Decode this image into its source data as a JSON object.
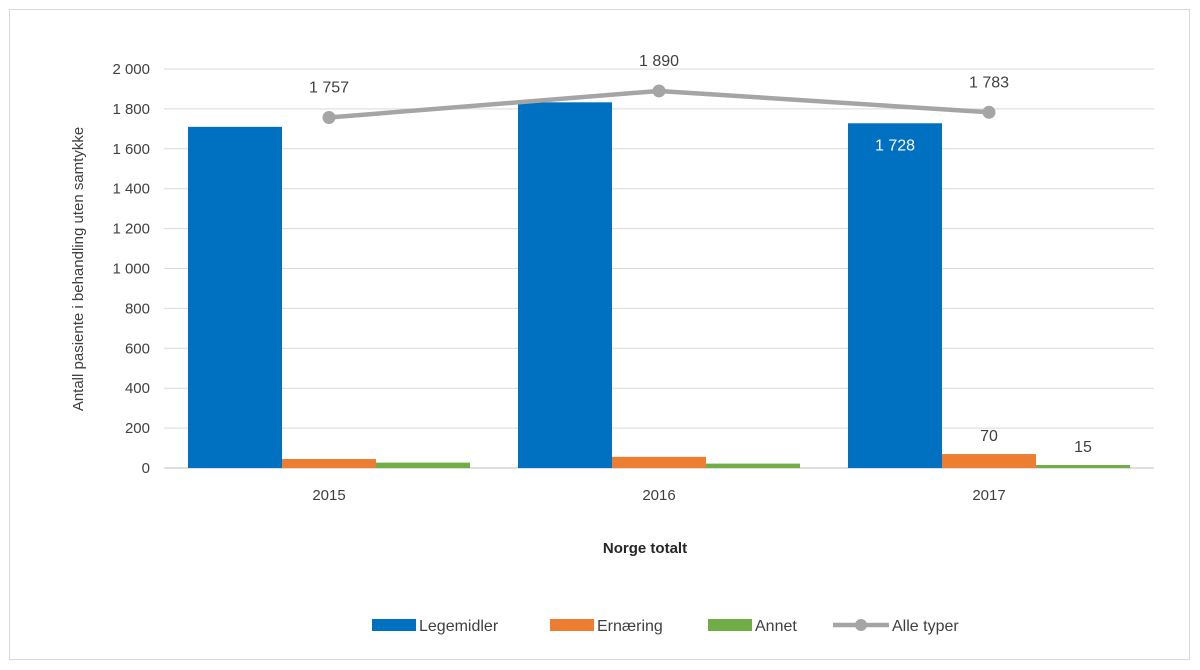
{
  "chart_data": {
    "type": "bar",
    "title": "",
    "xlabel": "Norge totalt",
    "ylabel": "Antall pasiente i behandling uten samtykke",
    "ylim": [
      0,
      2000
    ],
    "yticks": [
      0,
      200,
      400,
      600,
      800,
      1000,
      1200,
      1400,
      1600,
      1800,
      2000
    ],
    "ytick_labels": [
      "0",
      "200",
      "400",
      "600",
      "800",
      "1 000",
      "1 200",
      "1 400",
      "1 600",
      "1 800",
      "2 000"
    ],
    "categories": [
      "2015",
      "2016",
      "2017"
    ],
    "series": [
      {
        "name": "Legemidler",
        "type": "bar",
        "color": "#0070c0",
        "values": [
          1710,
          1833,
          1728
        ],
        "labels": [
          "",
          "",
          "1 728"
        ]
      },
      {
        "name": "Ernæring",
        "type": "bar",
        "color": "#ed7d31",
        "values": [
          45,
          56,
          70
        ],
        "labels": [
          "",
          "",
          "70"
        ]
      },
      {
        "name": "Annet",
        "type": "bar",
        "color": "#70ad47",
        "values": [
          27,
          22,
          15
        ],
        "labels": [
          "",
          "",
          "15"
        ]
      },
      {
        "name": "Alle typer",
        "type": "line",
        "color": "#a5a5a5",
        "values": [
          1757,
          1890,
          1783
        ],
        "labels": [
          "1 757",
          "1 890",
          "1 783"
        ]
      }
    ],
    "grid": true,
    "legend_position": "bottom"
  }
}
